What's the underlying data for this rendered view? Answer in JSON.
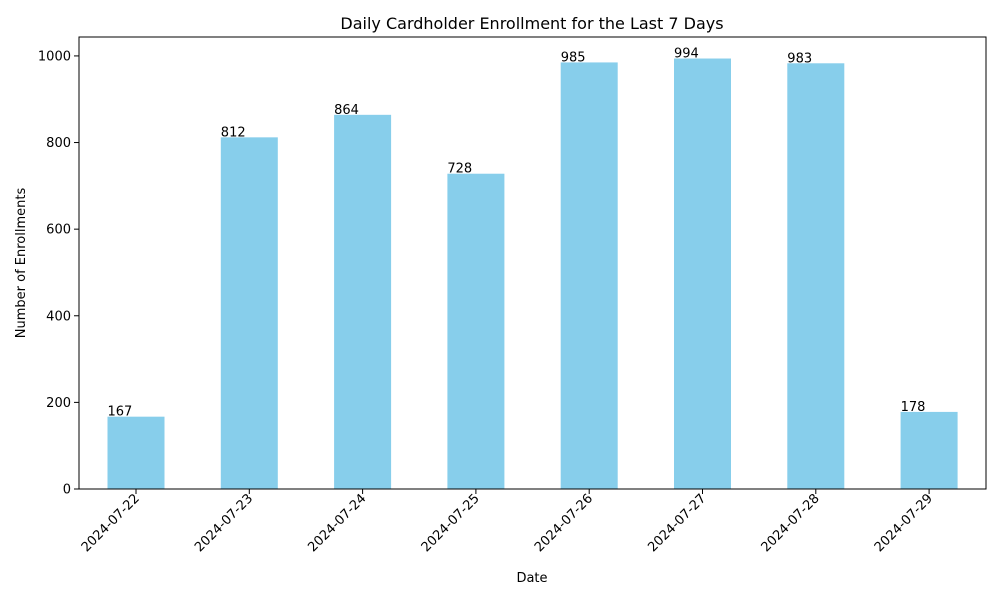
{
  "chart_data": {
    "type": "bar",
    "title": "Daily Cardholder Enrollment for the Last 7 Days",
    "xlabel": "Date",
    "ylabel": "Number of Enrollments",
    "categories": [
      "2024-07-22",
      "2024-07-23",
      "2024-07-24",
      "2024-07-25",
      "2024-07-26",
      "2024-07-27",
      "2024-07-28",
      "2024-07-29"
    ],
    "values": [
      167,
      812,
      864,
      728,
      985,
      994,
      983,
      178
    ],
    "ylim": [
      0,
      1043.7
    ],
    "yticks": [
      0,
      200,
      400,
      600,
      800,
      1000
    ],
    "bar_color": "#87ceeb",
    "grid": false,
    "legend": "none",
    "xtick_rotation": 45
  }
}
